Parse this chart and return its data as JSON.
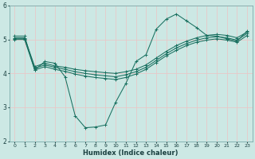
{
  "xlabel": "Humidex (Indice chaleur)",
  "bg_color": "#cce8e4",
  "grid_color": "#e8c8c8",
  "line_color": "#1a7060",
  "xlim": [
    -0.5,
    23.5
  ],
  "ylim": [
    2,
    6
  ],
  "yticks": [
    2,
    3,
    4,
    5,
    6
  ],
  "xticks": [
    0,
    1,
    2,
    3,
    4,
    5,
    6,
    7,
    8,
    9,
    10,
    11,
    12,
    13,
    14,
    15,
    16,
    17,
    18,
    19,
    20,
    21,
    22,
    23
  ],
  "series": [
    {
      "x": [
        0,
        1,
        2,
        3,
        4,
        5,
        6,
        7,
        8,
        9,
        10,
        11,
        12,
        13,
        14,
        15,
        16,
        17,
        18,
        19,
        20,
        21,
        22,
        23
      ],
      "y": [
        5.1,
        5.1,
        4.1,
        4.35,
        4.3,
        3.9,
        2.75,
        2.4,
        2.42,
        2.48,
        3.15,
        3.7,
        4.35,
        4.55,
        5.3,
        5.6,
        5.75,
        5.55,
        5.35,
        5.12,
        5.1,
        5.02,
        4.95,
        5.25
      ]
    },
    {
      "x": [
        0,
        1,
        2,
        3,
        4,
        5,
        6,
        7,
        8,
        9,
        10,
        11,
        12,
        13,
        14,
        15,
        16,
        17,
        18,
        19,
        20,
        21,
        22,
        23
      ],
      "y": [
        5.05,
        5.05,
        4.2,
        4.3,
        4.22,
        4.18,
        4.12,
        4.08,
        4.05,
        4.02,
        4.0,
        4.05,
        4.12,
        4.25,
        4.45,
        4.65,
        4.82,
        4.95,
        5.05,
        5.12,
        5.15,
        5.12,
        5.05,
        5.22
      ]
    },
    {
      "x": [
        0,
        1,
        2,
        3,
        4,
        5,
        6,
        7,
        8,
        9,
        10,
        11,
        12,
        13,
        14,
        15,
        16,
        17,
        18,
        19,
        20,
        21,
        22,
        23
      ],
      "y": [
        5.02,
        5.02,
        4.15,
        4.25,
        4.18,
        4.12,
        4.05,
        4.0,
        3.96,
        3.93,
        3.9,
        3.96,
        4.05,
        4.18,
        4.38,
        4.58,
        4.75,
        4.88,
        4.98,
        5.05,
        5.08,
        5.05,
        4.98,
        5.18
      ]
    },
    {
      "x": [
        0,
        1,
        2,
        3,
        4,
        5,
        6,
        7,
        8,
        9,
        10,
        11,
        12,
        13,
        14,
        15,
        16,
        17,
        18,
        19,
        20,
        21,
        22,
        23
      ],
      "y": [
        5.0,
        5.0,
        4.1,
        4.2,
        4.12,
        4.06,
        3.98,
        3.92,
        3.88,
        3.85,
        3.82,
        3.88,
        3.98,
        4.12,
        4.32,
        4.52,
        4.68,
        4.82,
        4.92,
        4.98,
        5.02,
        4.98,
        4.92,
        5.12
      ]
    }
  ]
}
